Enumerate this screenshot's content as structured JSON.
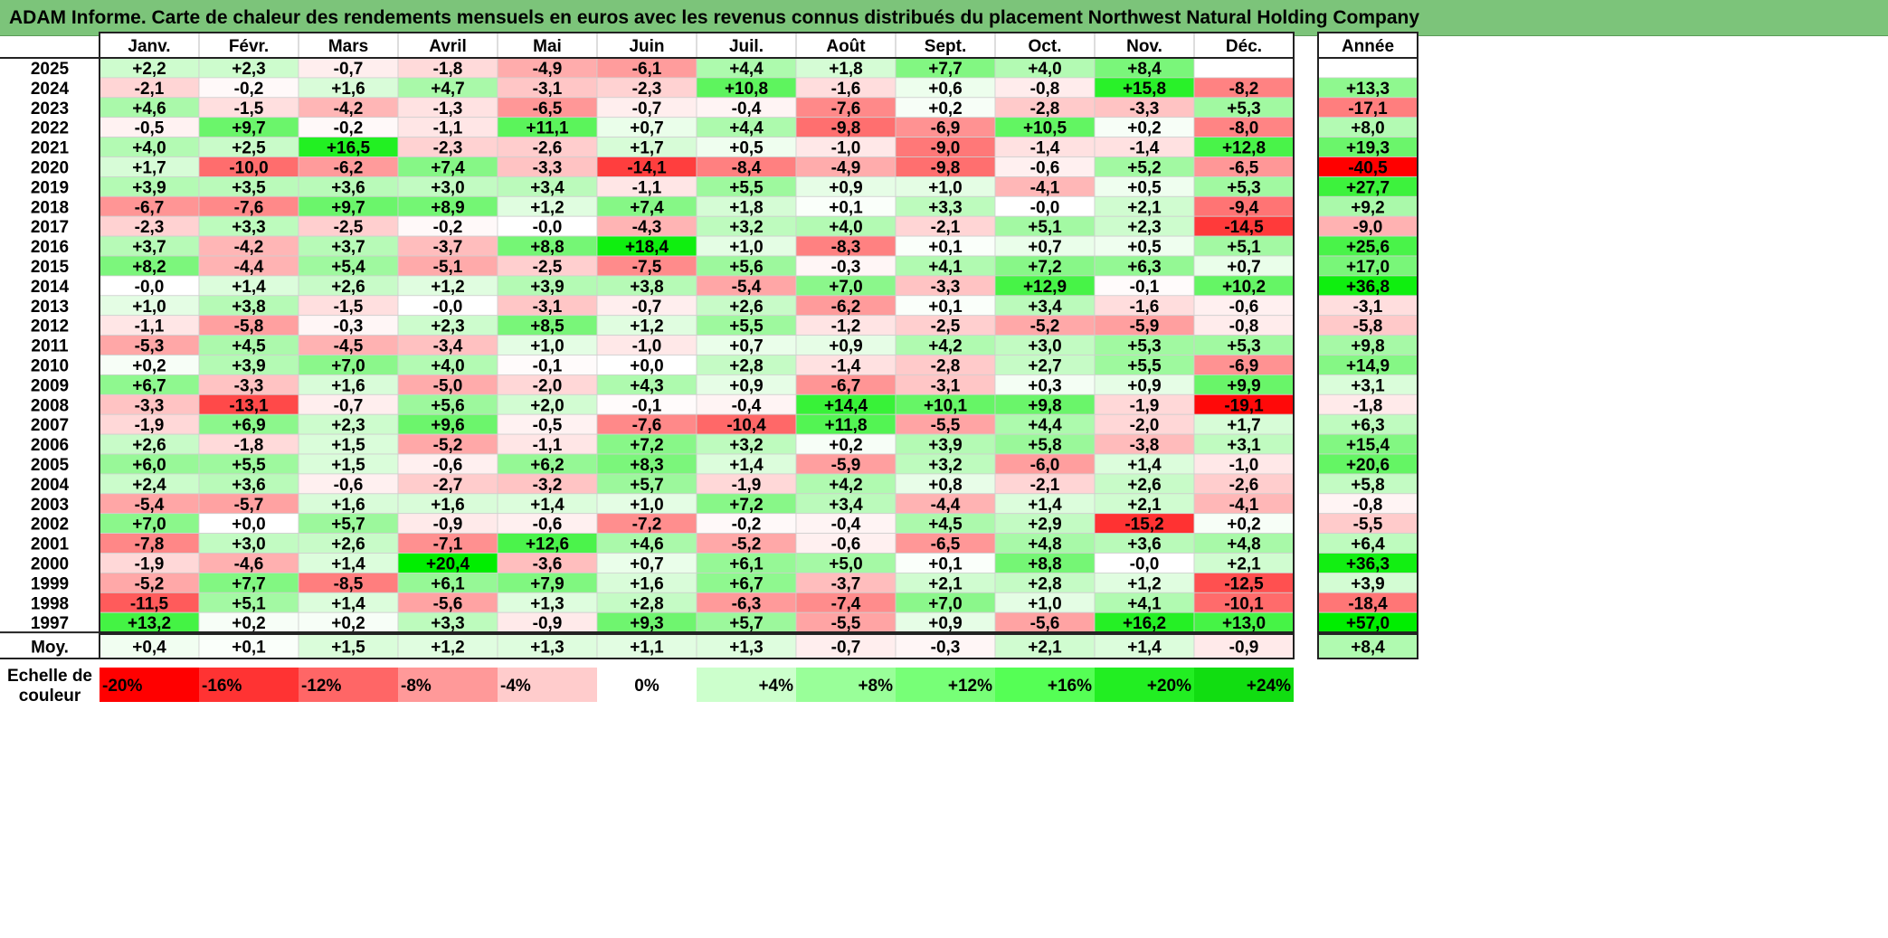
{
  "title": "ADAM Informe. Carte de chaleur des rendements mensuels en euros avec les revenus connus distribués du placement Northwest Natural Holding Company",
  "chart_data": {
    "type": "heatmap",
    "months": [
      "Janv.",
      "Févr.",
      "Mars",
      "Avril",
      "Mai",
      "Juin",
      "Juil.",
      "Août",
      "Sept.",
      "Oct.",
      "Nov.",
      "Déc."
    ],
    "year_header": "Année",
    "average_label": "Moy.",
    "scale_label_line1": "Echelle de",
    "scale_label_line2": "couleur",
    "rows": [
      {
        "year": "2025",
        "m": [
          "+2,2",
          "+2,3",
          "-0,7",
          "-1,8",
          "-4,9",
          "-6,1",
          "+4,4",
          "+1,8",
          "+7,7",
          "+4,0",
          "+8,4",
          ""
        ],
        "y": ""
      },
      {
        "year": "2024",
        "m": [
          "-2,1",
          "-0,2",
          "+1,6",
          "+4,7",
          "-3,1",
          "-2,3",
          "+10,8",
          "-1,6",
          "+0,6",
          "-0,8",
          "+15,8",
          "-8,2"
        ],
        "y": "+13,3"
      },
      {
        "year": "2023",
        "m": [
          "+4,6",
          "-1,5",
          "-4,2",
          "-1,3",
          "-6,5",
          "-0,7",
          "-0,4",
          "-7,6",
          "+0,2",
          "-2,8",
          "-3,3",
          "+5,3"
        ],
        "y": "-17,1"
      },
      {
        "year": "2022",
        "m": [
          "-0,5",
          "+9,7",
          "-0,2",
          "-1,1",
          "+11,1",
          "+0,7",
          "+4,4",
          "-9,8",
          "-6,9",
          "+10,5",
          "+0,2",
          "-8,0"
        ],
        "y": "+8,0"
      },
      {
        "year": "2021",
        "m": [
          "+4,0",
          "+2,5",
          "+16,5",
          "-2,3",
          "-2,6",
          "+1,7",
          "+0,5",
          "-1,0",
          "-9,0",
          "-1,4",
          "-1,4",
          "+12,8"
        ],
        "y": "+19,3"
      },
      {
        "year": "2020",
        "m": [
          "+1,7",
          "-10,0",
          "-6,2",
          "+7,4",
          "-3,3",
          "-14,1",
          "-8,4",
          "-4,9",
          "-9,8",
          "-0,6",
          "+5,2",
          "-6,5"
        ],
        "y": "-40,5"
      },
      {
        "year": "2019",
        "m": [
          "+3,9",
          "+3,5",
          "+3,6",
          "+3,0",
          "+3,4",
          "-1,1",
          "+5,5",
          "+0,9",
          "+1,0",
          "-4,1",
          "+0,5",
          "+5,3"
        ],
        "y": "+27,7"
      },
      {
        "year": "2018",
        "m": [
          "-6,7",
          "-7,6",
          "+9,7",
          "+8,9",
          "+1,2",
          "+7,4",
          "+1,8",
          "+0,1",
          "+3,3",
          "-0,0",
          "+2,1",
          "-9,4"
        ],
        "y": "+9,2"
      },
      {
        "year": "2017",
        "m": [
          "-2,3",
          "+3,3",
          "-2,5",
          "-0,2",
          "-0,0",
          "-4,3",
          "+3,2",
          "+4,0",
          "-2,1",
          "+5,1",
          "+2,3",
          "-14,5"
        ],
        "y": "-9,0"
      },
      {
        "year": "2016",
        "m": [
          "+3,7",
          "-4,2",
          "+3,7",
          "-3,7",
          "+8,8",
          "+18,4",
          "+1,0",
          "-8,3",
          "+0,1",
          "+0,7",
          "+0,5",
          "+5,1"
        ],
        "y": "+25,6"
      },
      {
        "year": "2015",
        "m": [
          "+8,2",
          "-4,4",
          "+5,4",
          "-5,1",
          "-2,5",
          "-7,5",
          "+5,6",
          "-0,3",
          "+4,1",
          "+7,2",
          "+6,3",
          "+0,7"
        ],
        "y": "+17,0"
      },
      {
        "year": "2014",
        "m": [
          "-0,0",
          "+1,4",
          "+2,6",
          "+1,2",
          "+3,9",
          "+3,8",
          "-5,4",
          "+7,0",
          "-3,3",
          "+12,9",
          "-0,1",
          "+10,2"
        ],
        "y": "+36,8"
      },
      {
        "year": "2013",
        "m": [
          "+1,0",
          "+3,8",
          "-1,5",
          "-0,0",
          "-3,1",
          "-0,7",
          "+2,6",
          "-6,2",
          "+0,1",
          "+3,4",
          "-1,6",
          "-0,6"
        ],
        "y": "-3,1"
      },
      {
        "year": "2012",
        "m": [
          "-1,1",
          "-5,8",
          "-0,3",
          "+2,3",
          "+8,5",
          "+1,2",
          "+5,5",
          "-1,2",
          "-2,5",
          "-5,2",
          "-5,9",
          "-0,8"
        ],
        "y": "-5,8"
      },
      {
        "year": "2011",
        "m": [
          "-5,3",
          "+4,5",
          "-4,5",
          "-3,4",
          "+1,0",
          "-1,0",
          "+0,7",
          "+0,9",
          "+4,2",
          "+3,0",
          "+5,3",
          "+5,3"
        ],
        "y": "+9,8"
      },
      {
        "year": "2010",
        "m": [
          "+0,2",
          "+3,9",
          "+7,0",
          "+4,0",
          "-0,1",
          "+0,0",
          "+2,8",
          "-1,4",
          "-2,8",
          "+2,7",
          "+5,5",
          "-6,9"
        ],
        "y": "+14,9"
      },
      {
        "year": "2009",
        "m": [
          "+6,7",
          "-3,3",
          "+1,6",
          "-5,0",
          "-2,0",
          "+4,3",
          "+0,9",
          "-6,7",
          "-3,1",
          "+0,3",
          "+0,9",
          "+9,9"
        ],
        "y": "+3,1"
      },
      {
        "year": "2008",
        "m": [
          "-3,3",
          "-13,1",
          "-0,7",
          "+5,6",
          "+2,0",
          "-0,1",
          "-0,4",
          "+14,4",
          "+10,1",
          "+9,8",
          "-1,9",
          "-19,1"
        ],
        "y": "-1,8"
      },
      {
        "year": "2007",
        "m": [
          "-1,9",
          "+6,9",
          "+2,3",
          "+9,6",
          "-0,5",
          "-7,6",
          "-10,4",
          "+11,8",
          "-5,5",
          "+4,4",
          "-2,0",
          "+1,7"
        ],
        "y": "+6,3"
      },
      {
        "year": "2006",
        "m": [
          "+2,6",
          "-1,8",
          "+1,5",
          "-5,2",
          "-1,1",
          "+7,2",
          "+3,2",
          "+0,2",
          "+3,9",
          "+5,8",
          "-3,8",
          "+3,1"
        ],
        "y": "+15,4"
      },
      {
        "year": "2005",
        "m": [
          "+6,0",
          "+5,5",
          "+1,5",
          "-0,6",
          "+6,2",
          "+8,3",
          "+1,4",
          "-5,9",
          "+3,2",
          "-6,0",
          "+1,4",
          "-1,0"
        ],
        "y": "+20,6"
      },
      {
        "year": "2004",
        "m": [
          "+2,4",
          "+3,6",
          "-0,6",
          "-2,7",
          "-3,2",
          "+5,7",
          "-1,9",
          "+4,2",
          "+0,8",
          "-2,1",
          "+2,6",
          "-2,6"
        ],
        "y": "+5,8"
      },
      {
        "year": "2003",
        "m": [
          "-5,4",
          "-5,7",
          "+1,6",
          "+1,6",
          "+1,4",
          "+1,0",
          "+7,2",
          "+3,4",
          "-4,4",
          "+1,4",
          "+2,1",
          "-4,1"
        ],
        "y": "-0,8"
      },
      {
        "year": "2002",
        "m": [
          "+7,0",
          "+0,0",
          "+5,7",
          "-0,9",
          "-0,6",
          "-7,2",
          "-0,2",
          "-0,4",
          "+4,5",
          "+2,9",
          "-15,2",
          "+0,2"
        ],
        "y": "-5,5"
      },
      {
        "year": "2001",
        "m": [
          "-7,8",
          "+3,0",
          "+2,6",
          "-7,1",
          "+12,6",
          "+4,6",
          "-5,2",
          "-0,6",
          "-6,5",
          "+4,8",
          "+3,6",
          "+4,8"
        ],
        "y": "+6,4"
      },
      {
        "year": "2000",
        "m": [
          "-1,9",
          "-4,6",
          "+1,4",
          "+20,4",
          "-3,6",
          "+0,7",
          "+6,1",
          "+5,0",
          "+0,1",
          "+8,8",
          "-0,0",
          "+2,1"
        ],
        "y": "+36,3"
      },
      {
        "year": "1999",
        "m": [
          "-5,2",
          "+7,7",
          "-8,5",
          "+6,1",
          "+7,9",
          "+1,6",
          "+6,7",
          "-3,7",
          "+2,1",
          "+2,8",
          "+1,2",
          "-12,5"
        ],
        "y": "+3,9"
      },
      {
        "year": "1998",
        "m": [
          "-11,5",
          "+5,1",
          "+1,4",
          "-5,6",
          "+1,3",
          "+2,8",
          "-6,3",
          "-7,4",
          "+7,0",
          "+1,0",
          "+4,1",
          "-10,1"
        ],
        "y": "-18,4"
      },
      {
        "year": "1997",
        "m": [
          "+13,2",
          "+0,2",
          "+0,2",
          "+3,3",
          "-0,9",
          "+9,3",
          "+5,7",
          "-5,5",
          "+0,9",
          "-5,6",
          "+16,2",
          "+13,0"
        ],
        "y": "+57,0"
      }
    ],
    "average": {
      "m": [
        "+0,4",
        "+0,1",
        "+1,5",
        "+1,2",
        "+1,3",
        "+1,1",
        "+1,3",
        "-0,7",
        "-0,3",
        "+2,1",
        "+1,4",
        "-0,9"
      ],
      "y": "+8,4"
    },
    "scale": [
      {
        "label": "-20%",
        "color": "#ff0000"
      },
      {
        "label": "-16%",
        "color": "#ff3333"
      },
      {
        "label": "-12%",
        "color": "#ff6666"
      },
      {
        "label": "-8%",
        "color": "#ff9999"
      },
      {
        "label": "-4%",
        "color": "#ffcccc"
      },
      {
        "label": "0%",
        "color": "#ffffff"
      },
      {
        "label": "+4%",
        "color": "#ccffcc"
      },
      {
        "label": "+8%",
        "color": "#99ff99"
      },
      {
        "label": "+12%",
        "color": "#77ff77"
      },
      {
        "label": "+16%",
        "color": "#55ff55"
      },
      {
        "label": "+20%",
        "color": "#22ee22"
      },
      {
        "label": "+24%",
        "color": "#11dd11"
      }
    ]
  }
}
